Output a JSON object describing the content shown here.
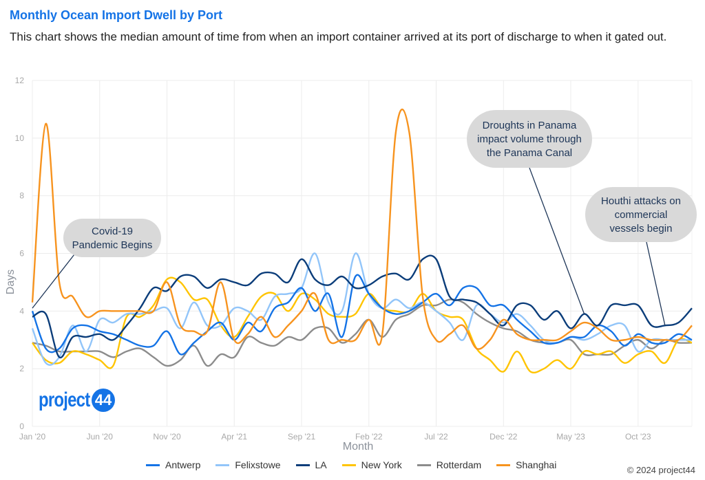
{
  "header": {
    "title": "Monthly Ocean Import Dwell by Port",
    "subtitle": "This chart shows the median amount of time from when an import container arrived at its port of discharge to when it gated out."
  },
  "logo": {
    "text": "project",
    "badge": "44"
  },
  "copyright": "© 2024 project44",
  "chart_data": {
    "type": "line",
    "title": "Monthly Ocean Import Dwell by Port",
    "xlabel": "Month",
    "ylabel": "Days",
    "ylim": [
      0,
      12
    ],
    "yticks": [
      "0",
      "2",
      "4",
      "6",
      "8",
      "10",
      "12"
    ],
    "xtick_labels": [
      "Jan '20",
      "Jun '20",
      "Nov '20",
      "Apr '21",
      "Sep '21",
      "Feb '22",
      "Jul '22",
      "Dec '22",
      "May '23",
      "Oct '23"
    ],
    "grid": true,
    "legend_position": "bottom",
    "x": [
      "Jan '20",
      "Feb '20",
      "Mar '20",
      "Apr '20",
      "May '20",
      "Jun '20",
      "Jul '20",
      "Aug '20",
      "Sep '20",
      "Oct '20",
      "Nov '20",
      "Dec '20",
      "Jan '21",
      "Feb '21",
      "Mar '21",
      "Apr '21",
      "May '21",
      "Jun '21",
      "Jul '21",
      "Aug '21",
      "Sep '21",
      "Oct '21",
      "Nov '21",
      "Dec '21",
      "Jan '22",
      "Feb '22",
      "Mar '22",
      "Apr '22",
      "May '22",
      "Jun '22",
      "Jul '22",
      "Aug '22",
      "Sep '22",
      "Oct '22",
      "Nov '22",
      "Dec '22",
      "Jan '23",
      "Feb '23",
      "Mar '23",
      "Apr '23",
      "May '23",
      "Jun '23",
      "Jul '23",
      "Aug '23",
      "Sep '23",
      "Oct '23",
      "Nov '23",
      "Dec '23",
      "Jan '24",
      "Feb '24"
    ],
    "series": [
      {
        "name": "Antwerp",
        "color": "#1473e6",
        "values": [
          4.0,
          2.7,
          2.7,
          3.4,
          3.5,
          3.3,
          3.2,
          3.0,
          2.8,
          2.8,
          3.3,
          2.5,
          2.9,
          3.3,
          3.6,
          3.0,
          3.6,
          3.3,
          4.1,
          4.3,
          4.8,
          4.0,
          4.6,
          3.1,
          5.2,
          4.6,
          4.1,
          3.9,
          4.0,
          4.3,
          4.6,
          4.2,
          4.8,
          4.8,
          4.2,
          4.2,
          3.7,
          3.3,
          2.9,
          2.9,
          3.1,
          3.1,
          3.5,
          3.3,
          2.8,
          3.2,
          2.9,
          2.9,
          3.2,
          3.0
        ]
      },
      {
        "name": "Felixstowe",
        "color": "#92c5f9",
        "values": [
          3.4,
          2.2,
          2.4,
          3.5,
          2.6,
          3.7,
          3.6,
          3.9,
          3.9,
          4.0,
          4.1,
          3.4,
          4.3,
          3.5,
          3.5,
          4.1,
          4.0,
          3.7,
          4.5,
          4.6,
          4.8,
          6.0,
          4.3,
          4.0,
          6.0,
          4.6,
          4.1,
          4.4,
          4.1,
          4.3,
          4.0,
          3.6,
          3.0,
          4.2,
          3.9,
          3.6,
          3.9,
          3.5,
          3.0,
          2.9,
          3.1,
          3.0,
          3.2,
          3.5,
          3.5,
          2.6,
          3.0,
          3.0,
          3.0,
          3.0
        ]
      },
      {
        "name": "LA",
        "color": "#0b3d7a",
        "values": [
          3.8,
          3.9,
          2.4,
          3.1,
          3.1,
          3.2,
          3.0,
          3.5,
          4.1,
          4.8,
          4.7,
          5.2,
          5.2,
          4.8,
          5.1,
          5.0,
          4.9,
          5.3,
          5.3,
          5.0,
          5.8,
          5.1,
          4.9,
          5.2,
          4.8,
          4.9,
          5.2,
          5.3,
          5.1,
          5.8,
          5.8,
          4.5,
          4.4,
          4.3,
          3.9,
          3.5,
          4.2,
          4.2,
          3.7,
          4.0,
          3.4,
          3.9,
          3.5,
          4.2,
          4.2,
          4.2,
          3.5,
          3.5,
          3.6,
          4.1
        ]
      },
      {
        "name": "New York",
        "color": "#ffc400",
        "values": [
          2.9,
          2.3,
          2.2,
          2.6,
          2.5,
          2.3,
          2.1,
          3.8,
          3.8,
          4.2,
          5.1,
          5.0,
          4.4,
          4.4,
          3.5,
          3.1,
          3.8,
          4.5,
          4.6,
          4.0,
          4.6,
          4.4,
          3.9,
          3.8,
          3.9,
          4.6,
          4.1,
          4.0,
          4.0,
          4.6,
          4.0,
          3.8,
          3.7,
          2.7,
          2.3,
          1.9,
          2.6,
          1.9,
          2.0,
          2.3,
          2.0,
          2.6,
          2.5,
          2.6,
          2.2,
          2.5,
          2.6,
          2.2,
          3.0,
          2.9
        ]
      },
      {
        "name": "Rotterdam",
        "color": "#8c8c8c",
        "values": [
          2.9,
          2.8,
          2.6,
          2.6,
          2.6,
          2.6,
          2.4,
          2.6,
          2.7,
          2.4,
          2.1,
          2.3,
          2.8,
          2.1,
          2.5,
          2.4,
          3.1,
          2.9,
          2.8,
          3.1,
          3.0,
          3.4,
          3.4,
          2.9,
          3.2,
          3.7,
          3.1,
          3.7,
          3.9,
          4.2,
          4.2,
          4.4,
          4.3,
          3.9,
          3.6,
          3.4,
          3.3,
          3.0,
          2.9,
          2.9,
          3.0,
          2.5,
          2.5,
          2.5,
          2.8,
          3.0,
          2.7,
          3.0,
          2.9,
          2.9
        ]
      },
      {
        "name": "Shanghai",
        "color": "#f7931e",
        "values": [
          4.3,
          10.5,
          5.0,
          4.5,
          3.8,
          4.0,
          4.0,
          4.0,
          4.0,
          4.0,
          5.0,
          3.5,
          3.3,
          3.3,
          5.0,
          3.0,
          3.2,
          3.8,
          3.1,
          3.5,
          4.0,
          4.6,
          3.0,
          3.0,
          3.0,
          3.7,
          3.2,
          10.2,
          10.2,
          4.5,
          3.0,
          3.2,
          3.5,
          2.7,
          3.0,
          3.7,
          3.2,
          3.0,
          3.0,
          3.0,
          3.3,
          3.6,
          3.4,
          3.0,
          3.0,
          3.1,
          3.0,
          3.0,
          3.0,
          3.5
        ]
      }
    ],
    "annotations": [
      {
        "lines": [
          "Covid-19",
          "Pandemic Begins"
        ],
        "month": 0,
        "value": 4.1
      },
      {
        "lines": [
          "Droughts in Panama",
          "impact volume through",
          "the Panama Canal"
        ],
        "month": 41,
        "value": 3.9
      },
      {
        "lines": [
          "Houthi attacks on",
          "commercial",
          "vessels begin"
        ],
        "month": 47,
        "value": 3.5
      }
    ]
  }
}
